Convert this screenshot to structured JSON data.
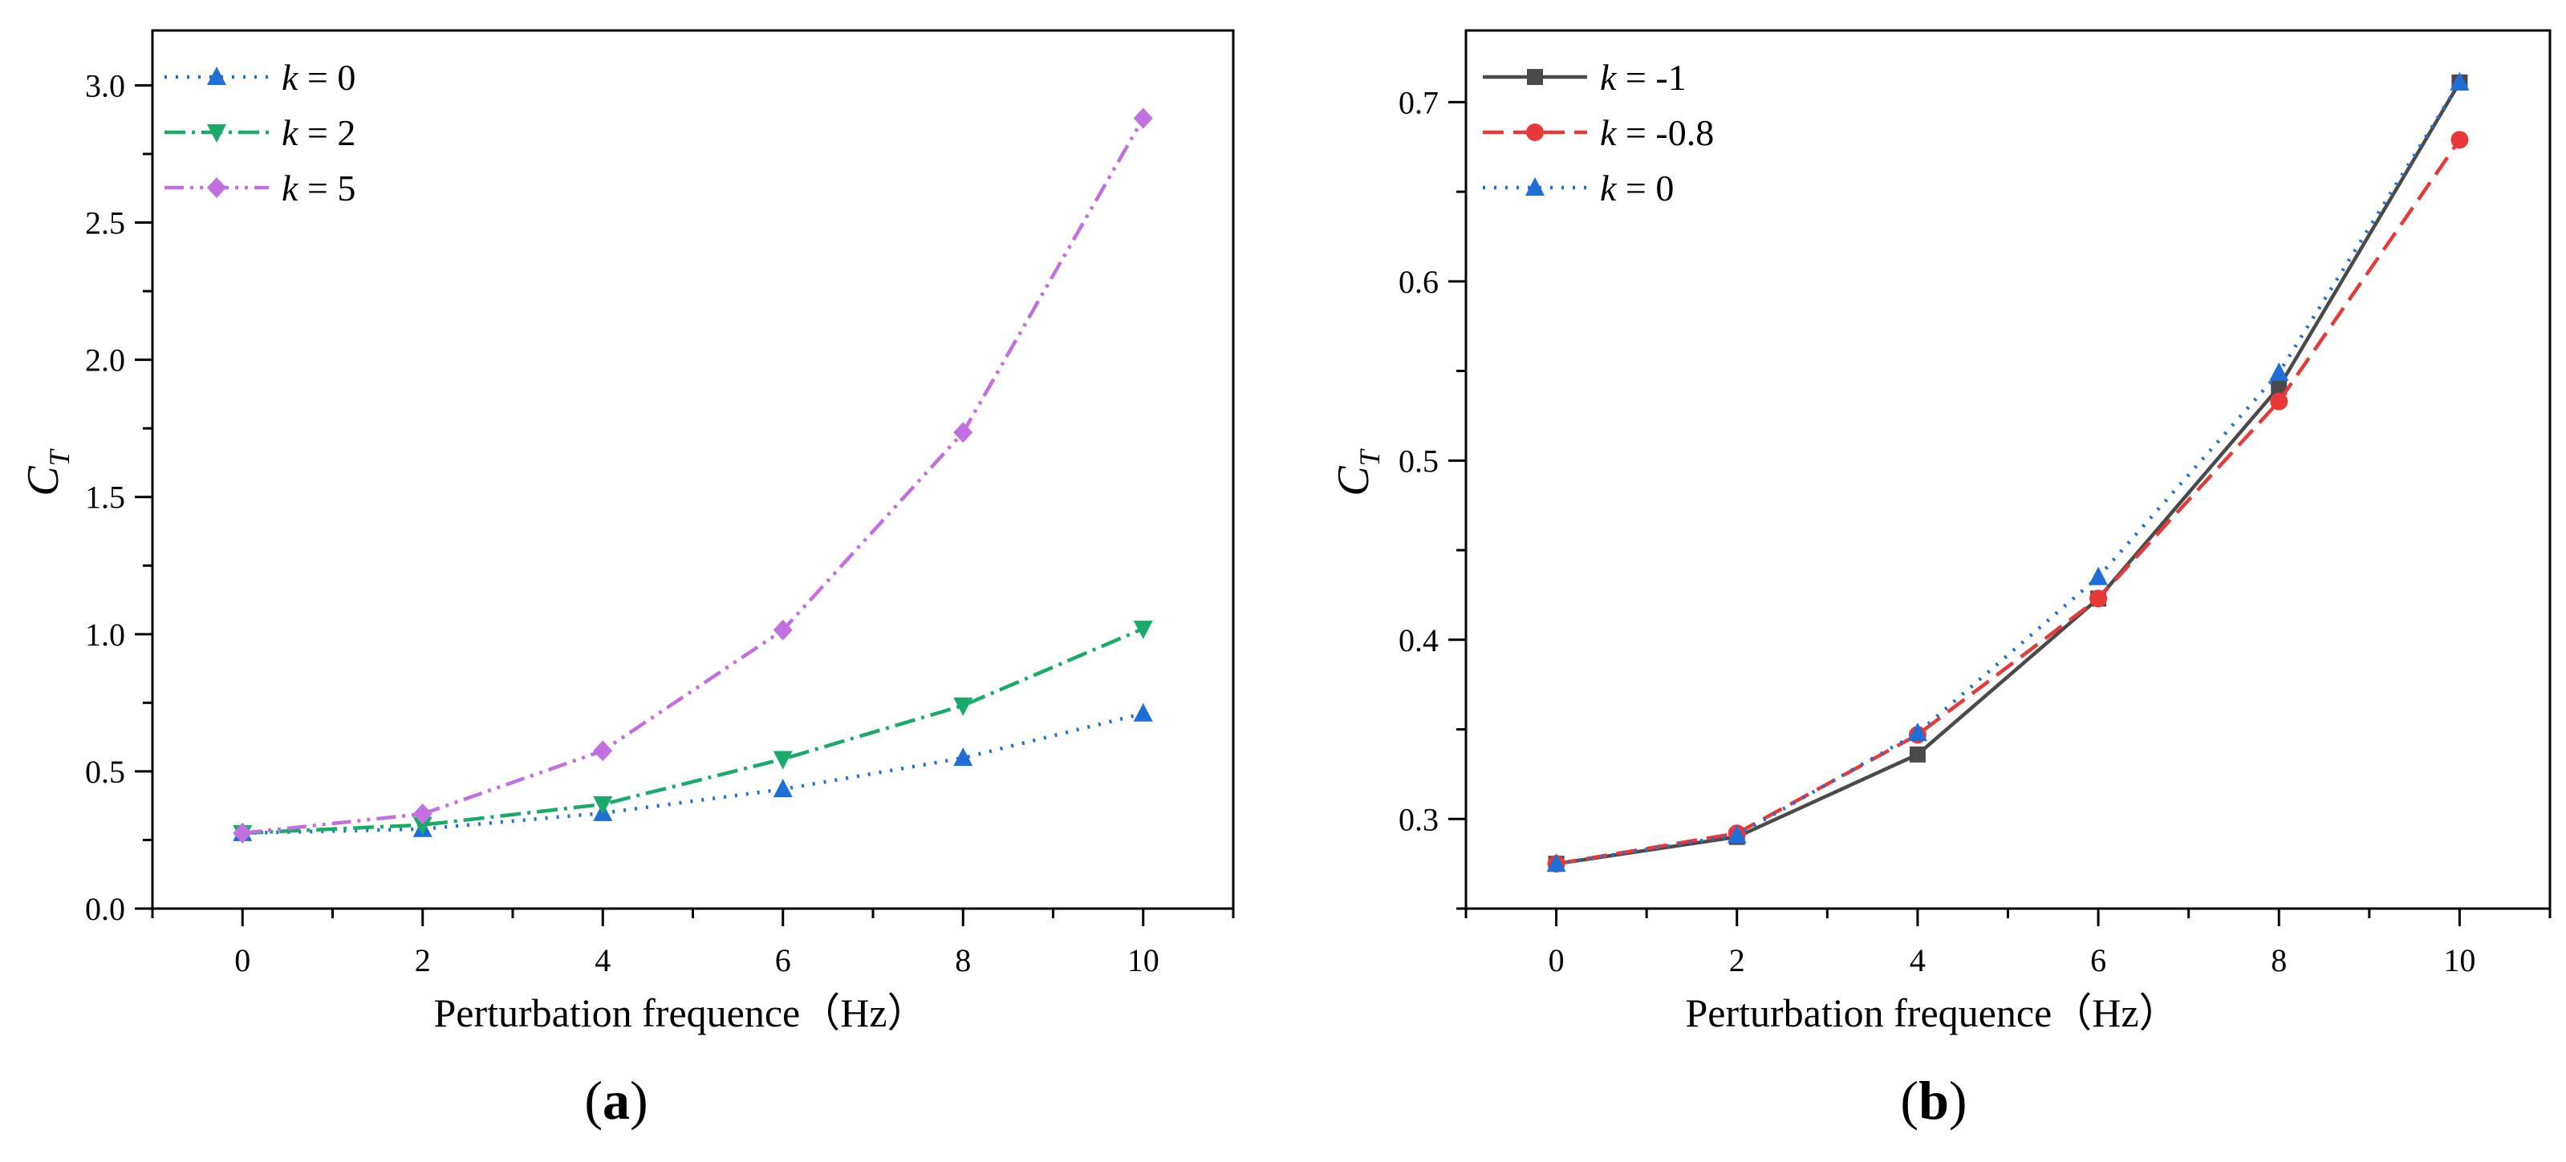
{
  "chart_data": [
    {
      "id": "a",
      "type": "line",
      "panel_label": {
        "open": "(",
        "letter": "a",
        "close": ")"
      },
      "xlabel": "Perturbation frequence（Hz）",
      "ylabel": {
        "main": "C",
        "sub": "T"
      },
      "xlim": [
        -1,
        11
      ],
      "ylim": [
        0,
        3.2
      ],
      "xticks": [
        0,
        2,
        4,
        6,
        8,
        10
      ],
      "xtick_labels": [
        "0",
        "2",
        "4",
        "6",
        "8",
        "10"
      ],
      "yticks": [
        0.0,
        0.5,
        1.0,
        1.5,
        2.0,
        2.5,
        3.0
      ],
      "ytick_labels": [
        "0.0",
        "0.5",
        "1.0",
        "1.5",
        "2.0",
        "2.5",
        "3.0"
      ],
      "legend_position": "top-left",
      "series": [
        {
          "name": "k = 0",
          "legend": {
            "var": "k",
            "eq": " = ",
            "val": "0"
          },
          "color": "#1f6fd6",
          "dash": "3,11",
          "marker": "triangle-up",
          "x": [
            0,
            2,
            4,
            6,
            8,
            10
          ],
          "values": [
            0.275,
            0.29,
            0.348,
            0.435,
            0.549,
            0.711
          ]
        },
        {
          "name": "k = 2",
          "legend": {
            "var": "k",
            "eq": " = ",
            "val": "2"
          },
          "color": "#1aaa6a",
          "dash": "26,8,4,8",
          "marker": "triangle-down",
          "x": [
            0,
            2,
            4,
            6,
            8,
            10
          ],
          "values": [
            0.275,
            0.305,
            0.38,
            0.545,
            0.74,
            1.02
          ]
        },
        {
          "name": "k = 5",
          "legend": {
            "var": "k",
            "eq": " = ",
            "val": "5"
          },
          "color": "#c26fe0",
          "dash": "24,8,4,8,4,8",
          "marker": "diamond",
          "x": [
            0,
            2,
            4,
            6,
            8,
            10
          ],
          "values": [
            0.275,
            0.345,
            0.575,
            1.015,
            1.735,
            2.88
          ]
        }
      ]
    },
    {
      "id": "b",
      "type": "line",
      "panel_label": {
        "open": "(",
        "letter": "b",
        "close": ")"
      },
      "xlabel": "Perturbation frequence（Hz）",
      "ylabel": {
        "main": "C",
        "sub": "T"
      },
      "xlim": [
        -1,
        11
      ],
      "ylim": [
        0.25,
        0.74
      ],
      "xticks": [
        0,
        2,
        4,
        6,
        8,
        10
      ],
      "xtick_labels": [
        "0",
        "2",
        "4",
        "6",
        "8",
        "10"
      ],
      "yticks": [
        0.3,
        0.4,
        0.5,
        0.6,
        0.7
      ],
      "ytick_labels": [
        "0.3",
        "0.4",
        "0.5",
        "0.6",
        "0.7"
      ],
      "legend_position": "top-left",
      "series": [
        {
          "name": "k = -1",
          "legend": {
            "var": "k",
            "eq": " = ",
            "val": "-1"
          },
          "color": "#4a4a4a",
          "dash": "",
          "marker": "square",
          "x": [
            0,
            2,
            4,
            6,
            8,
            10
          ],
          "values": [
            0.275,
            0.29,
            0.336,
            0.423,
            0.541,
            0.711
          ]
        },
        {
          "name": "k = -0.8",
          "legend": {
            "var": "k",
            "eq": " = ",
            "val": "-0.8"
          },
          "color": "#e8393a",
          "dash": "26,12",
          "marker": "circle",
          "x": [
            0,
            2,
            4,
            6,
            8,
            10
          ],
          "values": [
            0.275,
            0.292,
            0.347,
            0.423,
            0.533,
            0.679
          ]
        },
        {
          "name": "k = 0",
          "legend": {
            "var": "k",
            "eq": " = ",
            "val": "0"
          },
          "color": "#1f6fd6",
          "dash": "3,11",
          "marker": "triangle-up",
          "x": [
            0,
            2,
            4,
            6,
            8,
            10
          ],
          "values": [
            0.275,
            0.291,
            0.348,
            0.435,
            0.549,
            0.711
          ]
        }
      ]
    }
  ]
}
